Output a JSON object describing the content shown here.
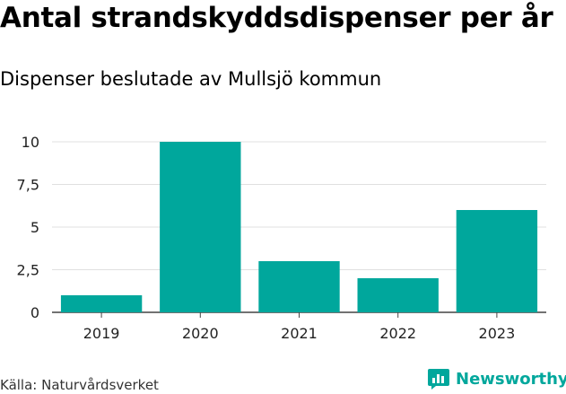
{
  "title": "Antal strandskyddsdispenser per år",
  "subtitle": "Dispenser beslutade av Mullsjö kommun",
  "source": "Källa: Naturvårdsverket",
  "brand": {
    "name": "Newsworthy",
    "icon": "newsworthy-logo-icon",
    "color": "#00a79c"
  },
  "chart_data": {
    "type": "bar",
    "categories": [
      "2019",
      "2020",
      "2021",
      "2022",
      "2023"
    ],
    "values": [
      1,
      10,
      3,
      2,
      6
    ],
    "title": "Antal strandskyddsdispenser per år",
    "subtitle": "Dispenser beslutade av Mullsjö kommun",
    "xlabel": "",
    "ylabel": "",
    "ylim": [
      0,
      10
    ],
    "yticks": [
      0,
      2.5,
      5,
      7.5,
      10
    ],
    "ytick_labels": [
      "0",
      "2,5",
      "5",
      "7,5",
      "10"
    ],
    "grid": true,
    "bar_color": "#00a79c"
  }
}
